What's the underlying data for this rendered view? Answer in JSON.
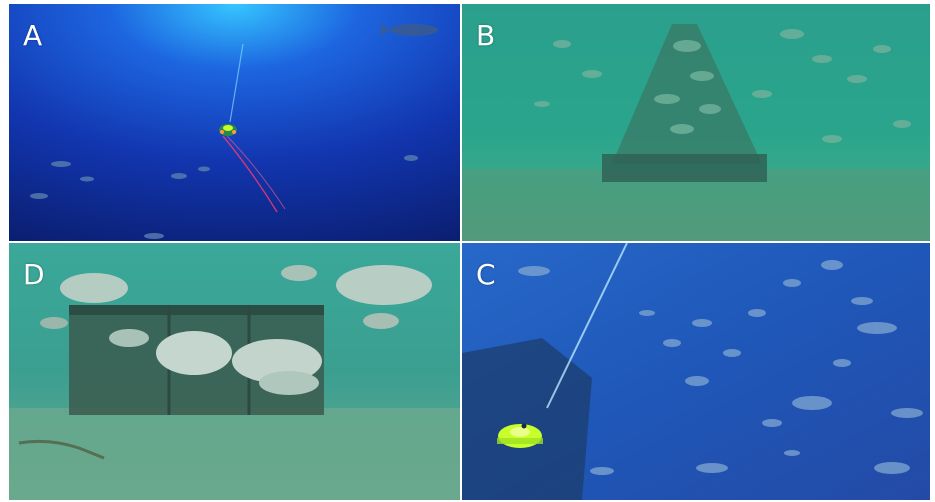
{
  "figure": {
    "panels": [
      {
        "id": "A",
        "label": "A",
        "scene": "open-water-rov-tether"
      },
      {
        "id": "B",
        "label": "B",
        "scene": "reef-structure-fish-school"
      },
      {
        "id": "D",
        "label": "D",
        "scene": "artificial-reef-snappers"
      },
      {
        "id": "C",
        "label": "C",
        "scene": "rov-with-fish-school"
      }
    ]
  },
  "colors": {
    "deep_blue": "#0d2c9a",
    "surface_blue": "#2f9fff",
    "green_water": "#2aa58c",
    "sand": "#5f9a7a",
    "rov_yellow": "#c8ff2a",
    "tether_red": "#ff3a6a"
  }
}
